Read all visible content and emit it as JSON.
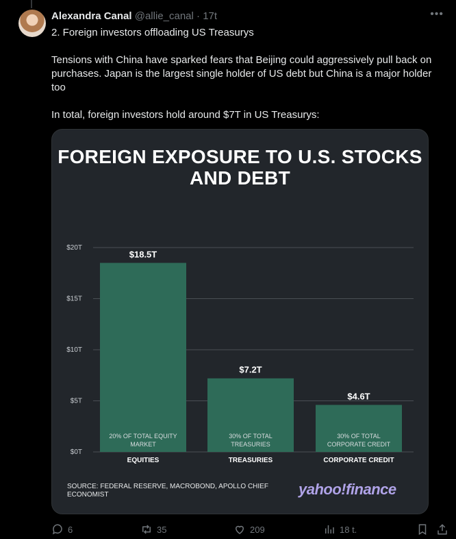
{
  "tweet": {
    "display_name": "Alexandra Canal",
    "handle": "@allie_canal",
    "separator": "·",
    "time": "17t",
    "more_icon": "ellipsis-icon",
    "paragraphs": [
      "2. Foreign investors offloading US Treasurys",
      "Tensions with China have sparked fears that Beijing could aggressively pull back on purchases. Japan is the largest single holder of US debt but China is a major holder too",
      "In total, foreign investors hold around $7T in US Treasurys:"
    ]
  },
  "media": {
    "title": "FOREIGN EXPOSURE TO U.S. STOCKS AND DEBT",
    "source": "SOURCE: FEDERAL RESERVE, MACROBOND, APOLLO CHIEF ECONOMIST",
    "brand": "yahoo!finance",
    "colors": {
      "background": "#22262b",
      "bar": "#2e6b58",
      "gridline": "#4a4f55",
      "text": "#ffffff",
      "brand": "#b0a3e8"
    }
  },
  "chart_data": {
    "type": "bar",
    "title": "FOREIGN EXPOSURE TO U.S. STOCKS AND DEBT",
    "categories": [
      "EQUITIES",
      "TREASURIES",
      "CORPORATE CREDIT"
    ],
    "values": [
      18.5,
      7.2,
      4.6
    ],
    "value_labels": [
      "$18.5T",
      "$7.2T",
      "$4.6T"
    ],
    "bar_notes": [
      "20% OF TOTAL EQUITY MARKET",
      "30% OF TOTAL TREASURIES",
      "30% OF TOTAL CORPORATE CREDIT"
    ],
    "y_ticks": [
      0,
      5,
      10,
      15,
      20
    ],
    "y_tick_labels": [
      "$0T",
      "$5T",
      "$10T",
      "$15T",
      "$20T"
    ],
    "ylim": [
      0,
      20
    ],
    "grid": true,
    "xlabel": "",
    "ylabel": ""
  },
  "actions": {
    "reply_count": "6",
    "repost_count": "35",
    "like_count": "209",
    "view_count": "18 t.",
    "icons": [
      "reply-icon",
      "repost-icon",
      "like-icon",
      "views-icon",
      "bookmark-icon",
      "share-icon"
    ]
  }
}
